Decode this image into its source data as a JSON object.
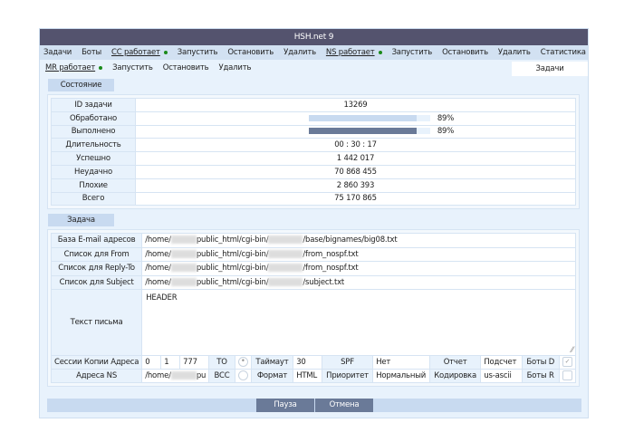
{
  "title": "HSH.net 9",
  "nav": {
    "tasks": "Задачи",
    "bots": "Боты",
    "cc_status": "CC работает",
    "cc_start": "Запустить",
    "cc_stop": "Остановить",
    "cc_delete": "Удалить",
    "ns_status": "NS работает",
    "ns_start": "Запустить",
    "ns_stop": "Остановить",
    "ns_delete": "Удалить",
    "stats": "Статистика"
  },
  "subnav": {
    "mr_status": "MR работает",
    "start": "Запустить",
    "stop": "Остановить",
    "delete": "Удалить",
    "tab": "Задачи"
  },
  "status": {
    "tab": "Состояние",
    "rows": [
      {
        "label": "ID задачи",
        "value": "13269"
      },
      {
        "label": "Обработано",
        "value": "89%",
        "progress": 89
      },
      {
        "label": "Выполнено",
        "value": "89%",
        "progress": 89
      },
      {
        "label": "Длительность",
        "value": "00 : 30 : 17"
      },
      {
        "label": "Успешно",
        "value": "1 442 017"
      },
      {
        "label": "Неудачно",
        "value": "70 868 455"
      },
      {
        "label": "Плохие",
        "value": "2 860 393"
      },
      {
        "label": "Всего",
        "value": "75 170 865"
      }
    ]
  },
  "task": {
    "tab": "Задача",
    "files": [
      {
        "label": "База E-mail адресов",
        "pre": "/home/",
        "mid": "public_html/cgi-bin/",
        "post": "/base/bignames/big08.txt"
      },
      {
        "label": "Список для From",
        "pre": "/home/",
        "mid": "public_html/cgi-bin/",
        "post": "/from_nospf.txt"
      },
      {
        "label": "Список для Reply-To",
        "pre": "/home/",
        "mid": "public_html/cgi-bin/",
        "post": "/from_nospf.txt"
      },
      {
        "label": "Список для Subject",
        "pre": "/home/",
        "mid": "public_html/cgi-bin/",
        "post": "/subject.txt"
      }
    ],
    "body_label": "Текст письма",
    "body": "HEADER",
    "sessions_label": "Сессии Копии Адреса",
    "sessions": "0",
    "copies": "1",
    "addresses": "777",
    "to": "TO",
    "timeout_label": "Таймаут",
    "timeout": "30",
    "spf_label": "SPF",
    "spf": "Нет",
    "report_label": "Отчет",
    "report": "Подсчет",
    "bots_d": "Боты D",
    "ns_label": "Адреса NS",
    "ns_pre": "/home/",
    "ns_post": "pu",
    "bcc": "BCC",
    "format_label": "Формат",
    "format": "HTML",
    "priority_label": "Приоритет",
    "priority": "Нормальный",
    "encoding_label": "Кодировка",
    "encoding": "us-ascii",
    "bots_r": "Боты R"
  },
  "buttons": {
    "pause": "Пауза",
    "cancel": "Отмена"
  },
  "colors": {
    "title_bar": "#54536e",
    "accent": "#6a7a98",
    "status_dot": "#1a8a1a"
  }
}
